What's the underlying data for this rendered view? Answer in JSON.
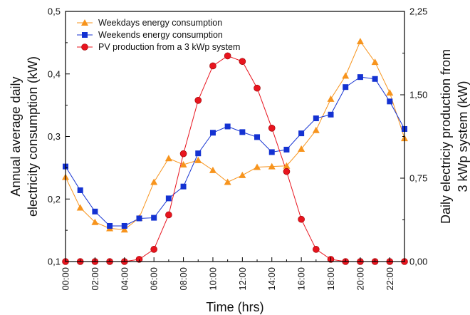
{
  "chart_data": {
    "type": "line",
    "x": [
      "00:00",
      "01:00",
      "02:00",
      "03:00",
      "04:00",
      "05:00",
      "06:00",
      "07:00",
      "08:00",
      "09:00",
      "10:00",
      "11:00",
      "12:00",
      "13:00",
      "14:00",
      "15:00",
      "16:00",
      "17:00",
      "18:00",
      "19:00",
      "20:00",
      "21:00",
      "22:00",
      "23:00"
    ],
    "x_tick_labels": [
      "00:00",
      "02:00",
      "04:00",
      "06:00",
      "08:00",
      "10:00",
      "12:00",
      "14:00",
      "16:00",
      "18:00",
      "20:00",
      "22:00"
    ],
    "xlabel": "Time (hrs)",
    "ylabel_left_line1": "Annual average daily",
    "ylabel_left_line2": "electricity consumption (kW)",
    "ylabel_right_line1": "Daily electriciy production from",
    "ylabel_right_line2": "3 kWp system (kW)",
    "ylim_left": [
      0.1,
      0.5
    ],
    "ylim_right": [
      0,
      2.25
    ],
    "yticks_left": [
      "0,1",
      "0,2",
      "0,3",
      "0,4",
      "0,5"
    ],
    "yticks_right": [
      "0,00",
      "0,75",
      "1,50",
      "2,25"
    ],
    "legend_position": "top-left",
    "grid": false,
    "series": [
      {
        "name": "Weekdays energy consumption",
        "axis": "left",
        "color": "#F7941D",
        "marker": "triangle",
        "values": [
          0.235,
          0.186,
          0.163,
          0.153,
          0.151,
          0.17,
          0.227,
          0.265,
          0.255,
          0.262,
          0.246,
          0.227,
          0.238,
          0.251,
          0.252,
          0.253,
          0.28,
          0.31,
          0.36,
          0.397,
          0.452,
          0.419,
          0.37,
          0.297
        ]
      },
      {
        "name": "Weekends energy consumption",
        "axis": "left",
        "color": "#1432D2",
        "marker": "square",
        "values": [
          0.252,
          0.214,
          0.18,
          0.157,
          0.157,
          0.169,
          0.17,
          0.201,
          0.22,
          0.273,
          0.306,
          0.316,
          0.307,
          0.299,
          0.275,
          0.279,
          0.305,
          0.329,
          0.335,
          0.379,
          0.395,
          0.392,
          0.356,
          0.312
        ]
      },
      {
        "name": "PV production from a 3 kWp system",
        "axis": "right",
        "color": "#E8141E",
        "marker": "circle",
        "values": [
          0,
          0,
          0,
          0,
          0,
          0.02,
          0.11,
          0.42,
          0.97,
          1.45,
          1.76,
          1.85,
          1.8,
          1.56,
          1.2,
          0.81,
          0.38,
          0.11,
          0.02,
          0,
          0,
          0,
          0,
          0
        ]
      }
    ]
  }
}
